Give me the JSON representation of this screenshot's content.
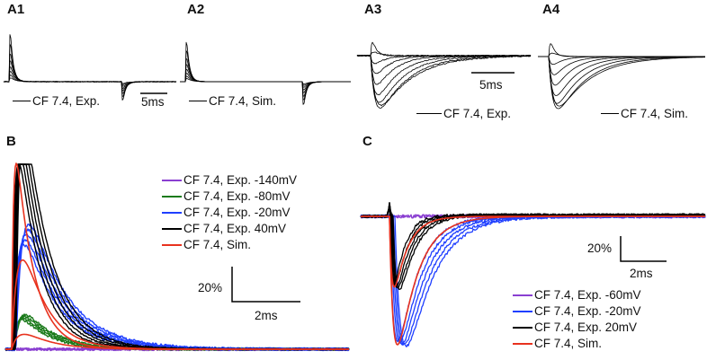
{
  "panels": {
    "A1": {
      "label": "A1",
      "legend": "CF 7.4, Exp.",
      "scalebar": "5ms"
    },
    "A2": {
      "label": "A2",
      "legend": "CF 7.4, Sim."
    },
    "A3": {
      "label": "A3",
      "legend": "CF 7.4, Exp.",
      "scalebar": "5ms"
    },
    "A4": {
      "label": "A4",
      "legend": "CF 7.4, Sim."
    },
    "B": {
      "label": "B",
      "scale_y": "20%",
      "scale_x": "2ms"
    },
    "C": {
      "label": "C",
      "scale_y": "20%",
      "scale_x": "2ms"
    }
  },
  "colors": {
    "purple": "#8a3fd1",
    "green": "#1a7a1a",
    "blue": "#1f3fff",
    "black": "#000000",
    "red": "#e8321e"
  },
  "chart_data": [
    {
      "id": "A1",
      "type": "line",
      "title": "A1",
      "legend": [
        "CF 7.4, Exp."
      ],
      "description": "Family of experimental traces: brief positive transients at onset, negative transients at offset",
      "series_count": 8,
      "onset_peaks_rel": [
        1.0,
        0.8,
        0.6,
        0.45,
        0.32,
        0.22,
        0.14,
        0.08
      ],
      "offset_troughs_rel": [
        -0.55,
        -0.45,
        -0.35,
        -0.27,
        -0.2,
        -0.14,
        -0.09,
        -0.05
      ],
      "scalebar_x": "5ms"
    },
    {
      "id": "A2",
      "type": "line",
      "title": "A2",
      "legend": [
        "CF 7.4, Sim."
      ],
      "series_count": 8,
      "onset_peaks_rel": [
        1.0,
        0.8,
        0.6,
        0.45,
        0.32,
        0.22,
        0.14,
        0.08
      ],
      "offset_troughs_rel": [
        -0.62,
        -0.5,
        -0.4,
        -0.3,
        -0.22,
        -0.15,
        -0.1,
        -0.06
      ]
    },
    {
      "id": "A3",
      "type": "line",
      "title": "A3",
      "legend": [
        "CF 7.4, Exp."
      ],
      "series_count": 9,
      "peaks_rel": [
        0.45,
        0.12,
        -0.15,
        -0.35,
        -0.55,
        -0.75,
        -0.9,
        -1.0,
        -0.95
      ],
      "scalebar_x": "5ms"
    },
    {
      "id": "A4",
      "type": "line",
      "title": "A4",
      "legend": [
        "CF 7.4, Sim."
      ],
      "series_count": 9,
      "peaks_rel": [
        0.45,
        0.12,
        -0.15,
        -0.35,
        -0.55,
        -0.75,
        -0.9,
        -1.0,
        -0.95
      ]
    },
    {
      "id": "B",
      "type": "line",
      "title": "B",
      "xlabel": "",
      "ylabel": "",
      "scalebar_y": "20%",
      "scalebar_x": "2ms",
      "legend_position": "top-right",
      "series": [
        {
          "name": "CF 7.4, Exp. -140mV",
          "color": "purple",
          "peak_percent": 0
        },
        {
          "name": "CF 7.4, Exp. -80mV",
          "color": "green",
          "peak_percent": 16
        },
        {
          "name": "CF 7.4, Exp. -20mV",
          "color": "blue",
          "peak_percent": 56
        },
        {
          "name": "CF 7.4, Exp. 40mV",
          "color": "black",
          "peak_percent": 100
        },
        {
          "name": "CF 7.4, Sim.",
          "color": "red",
          "peak_percent": [
            100,
            48,
            8
          ]
        }
      ]
    },
    {
      "id": "C",
      "type": "line",
      "title": "C",
      "scalebar_y": "20%",
      "scalebar_x": "2ms",
      "legend_position": "bottom-right",
      "series": [
        {
          "name": "CF 7.4, Exp. -60mV",
          "color": "purple",
          "peak_percent": 0
        },
        {
          "name": "CF 7.4, Exp. -20mV",
          "color": "blue",
          "peak_percent": -100
        },
        {
          "name": "CF 7.4, Exp. 20mV",
          "color": "black",
          "peak_percent": -55
        },
        {
          "name": "CF 7.4, Sim.",
          "color": "red",
          "peak_percent": [
            -100,
            -55
          ]
        }
      ]
    }
  ]
}
